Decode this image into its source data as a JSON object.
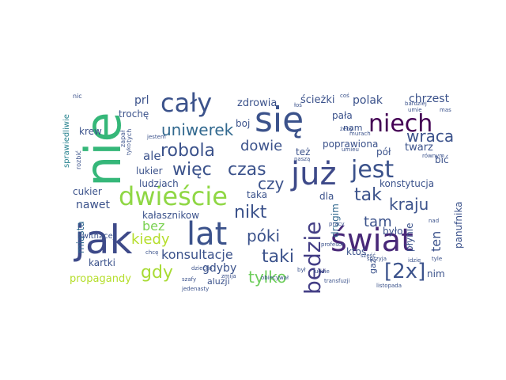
{
  "title": "word cloud",
  "words": [
    {
      "text": "się",
      "color": "#3b528b"
    },
    {
      "text": "nie",
      "color": "#35b779"
    },
    {
      "text": "jak",
      "color": "#3e4a89"
    },
    {
      "text": "lat",
      "color": "#3b528b"
    },
    {
      "text": "świat",
      "color": "#482878"
    },
    {
      "text": "już",
      "color": "#3e4a89"
    },
    {
      "text": "cały",
      "color": "#3b528b"
    },
    {
      "text": "niech",
      "color": "#440154"
    },
    {
      "text": "jest",
      "color": "#3b528b"
    },
    {
      "text": "dwieście",
      "color": "#8fd744"
    },
    {
      "text": "będzie",
      "color": "#433e85"
    },
    {
      "text": "[2x]",
      "color": "#3b528b"
    },
    {
      "text": "robola",
      "color": "#3b528b"
    },
    {
      "text": "więc",
      "color": "#3b528b"
    },
    {
      "text": "czas",
      "color": "#3b528b"
    },
    {
      "text": "uniwerek",
      "color": "#31688e"
    },
    {
      "text": "czy",
      "color": "#3b528b"
    },
    {
      "text": "nikt",
      "color": "#3b528b"
    },
    {
      "text": "kraju",
      "color": "#3b528b"
    },
    {
      "text": "tak",
      "color": "#3b528b"
    },
    {
      "text": "wraca",
      "color": "#3b528b"
    },
    {
      "text": "dowie",
      "color": "#3b528b"
    },
    {
      "text": "póki",
      "color": "#3b528b"
    },
    {
      "text": "taki",
      "color": "#3b528b"
    },
    {
      "text": "tylko",
      "color": "#6ccd5a"
    },
    {
      "text": "gdy",
      "color": "#a8db34"
    },
    {
      "text": "kiedy",
      "color": "#b5de2b"
    },
    {
      "text": "bez",
      "color": "#7ad151"
    },
    {
      "text": "tam",
      "color": "#3b528b"
    },
    {
      "text": "konsultacje",
      "color": "#3b528b"
    },
    {
      "text": "polak",
      "color": "#3b528b"
    },
    {
      "text": "chrzest",
      "color": "#3b528b"
    },
    {
      "text": "ale",
      "color": "#3b528b"
    },
    {
      "text": "prl",
      "color": "#3b528b"
    },
    {
      "text": "ścieżki",
      "color": "#3b528b"
    },
    {
      "text": "zdrowia",
      "color": "#3b528b"
    },
    {
      "text": "ten",
      "color": "#3b528b"
    },
    {
      "text": "gdyby",
      "color": "#3b528b"
    },
    {
      "text": "nawet",
      "color": "#3b528b"
    },
    {
      "text": "lukier",
      "color": "#3b528b"
    },
    {
      "text": "ludziach",
      "color": "#3b528b"
    },
    {
      "text": "cukier",
      "color": "#3b528b"
    },
    {
      "text": "kałasznikow",
      "color": "#3b528b"
    },
    {
      "text": "aluzji",
      "color": "#3b528b"
    },
    {
      "text": "propagandy",
      "color": "#b5de2b"
    },
    {
      "text": "kartki",
      "color": "#3b528b"
    },
    {
      "text": "krew",
      "color": "#3b528b"
    },
    {
      "text": "trochę",
      "color": "#3b528b"
    },
    {
      "text": "boj",
      "color": "#3b528b"
    },
    {
      "text": "pała",
      "color": "#3b528b"
    },
    {
      "text": "nam",
      "color": "#3b528b"
    },
    {
      "text": "pół",
      "color": "#3b528b"
    },
    {
      "text": "twarz",
      "color": "#3b528b"
    },
    {
      "text": "poprawiona",
      "color": "#3b528b"
    },
    {
      "text": "też",
      "color": "#3b528b"
    },
    {
      "text": "bić",
      "color": "#3b528b"
    },
    {
      "text": "konstytucja",
      "color": "#3b528b"
    },
    {
      "text": "taka",
      "color": "#3b528b"
    },
    {
      "text": "dla",
      "color": "#3b528b"
    },
    {
      "text": "drugim",
      "color": "#31688e"
    },
    {
      "text": "było",
      "color": "#3b528b"
    },
    {
      "text": "płynie",
      "color": "#3b528b"
    },
    {
      "text": "panufnika",
      "color": "#3b528b"
    },
    {
      "text": "ktoś",
      "color": "#3b528b"
    },
    {
      "text": "gaz",
      "color": "#3b528b"
    },
    {
      "text": "nim",
      "color": "#3b528b"
    },
    {
      "text": "miasta",
      "color": "#31688e"
    },
    {
      "text": "kwitnącej",
      "color": "#3b528b"
    },
    {
      "text": "sprawiedliwie",
      "color": "#26828e"
    },
    {
      "text": "nic",
      "color": "#3b528b"
    },
    {
      "text": "rozbić",
      "color": "#3b528b"
    },
    {
      "text": "tych",
      "color": "#3b528b"
    },
    {
      "text": "zapał",
      "color": "#3b528b"
    },
    {
      "text": "tyko",
      "color": "#3b528b"
    },
    {
      "text": "jestem",
      "color": "#3b528b"
    },
    {
      "text": "naszą",
      "color": "#3b528b"
    },
    {
      "text": "jedenasty",
      "color": "#3b528b"
    },
    {
      "text": "łoś",
      "color": "#3b528b"
    },
    {
      "text": "coś",
      "color": "#3b528b"
    },
    {
      "text": "umie",
      "color": "#3b528b"
    },
    {
      "text": "mas",
      "color": "#3b528b"
    },
    {
      "text": "bardziej",
      "color": "#3b528b"
    },
    {
      "text": "murach",
      "color": "#3b528b"
    },
    {
      "text": "równym",
      "color": "#3b528b"
    },
    {
      "text": "żeby",
      "color": "#3b528b"
    },
    {
      "text": "umieu",
      "color": "#3b528b"
    },
    {
      "text": "zmija",
      "color": "#3b528b"
    },
    {
      "text": "szafy",
      "color": "#3b528b"
    },
    {
      "text": "dziecko",
      "color": "#3b528b"
    },
    {
      "text": "obiecywał",
      "color": "#3b528b"
    },
    {
      "text": "chcę",
      "color": "#3b528b"
    },
    {
      "text": "był",
      "color": "#3b528b"
    },
    {
      "text": "profesor",
      "color": "#3b528b"
    },
    {
      "text": "pracy",
      "color": "#3b528b"
    },
    {
      "text": "ludzie",
      "color": "#3b528b"
    },
    {
      "text": "sześć",
      "color": "#3b528b"
    },
    {
      "text": "listopada",
      "color": "#3b528b"
    },
    {
      "text": "sprzyja",
      "color": "#3b528b"
    },
    {
      "text": "idzie",
      "color": "#3b528b"
    },
    {
      "text": "tyle",
      "color": "#3b528b"
    },
    {
      "text": "nad",
      "color": "#3b528b"
    },
    {
      "text": "transfuzji",
      "color": "#3b528b"
    }
  ]
}
